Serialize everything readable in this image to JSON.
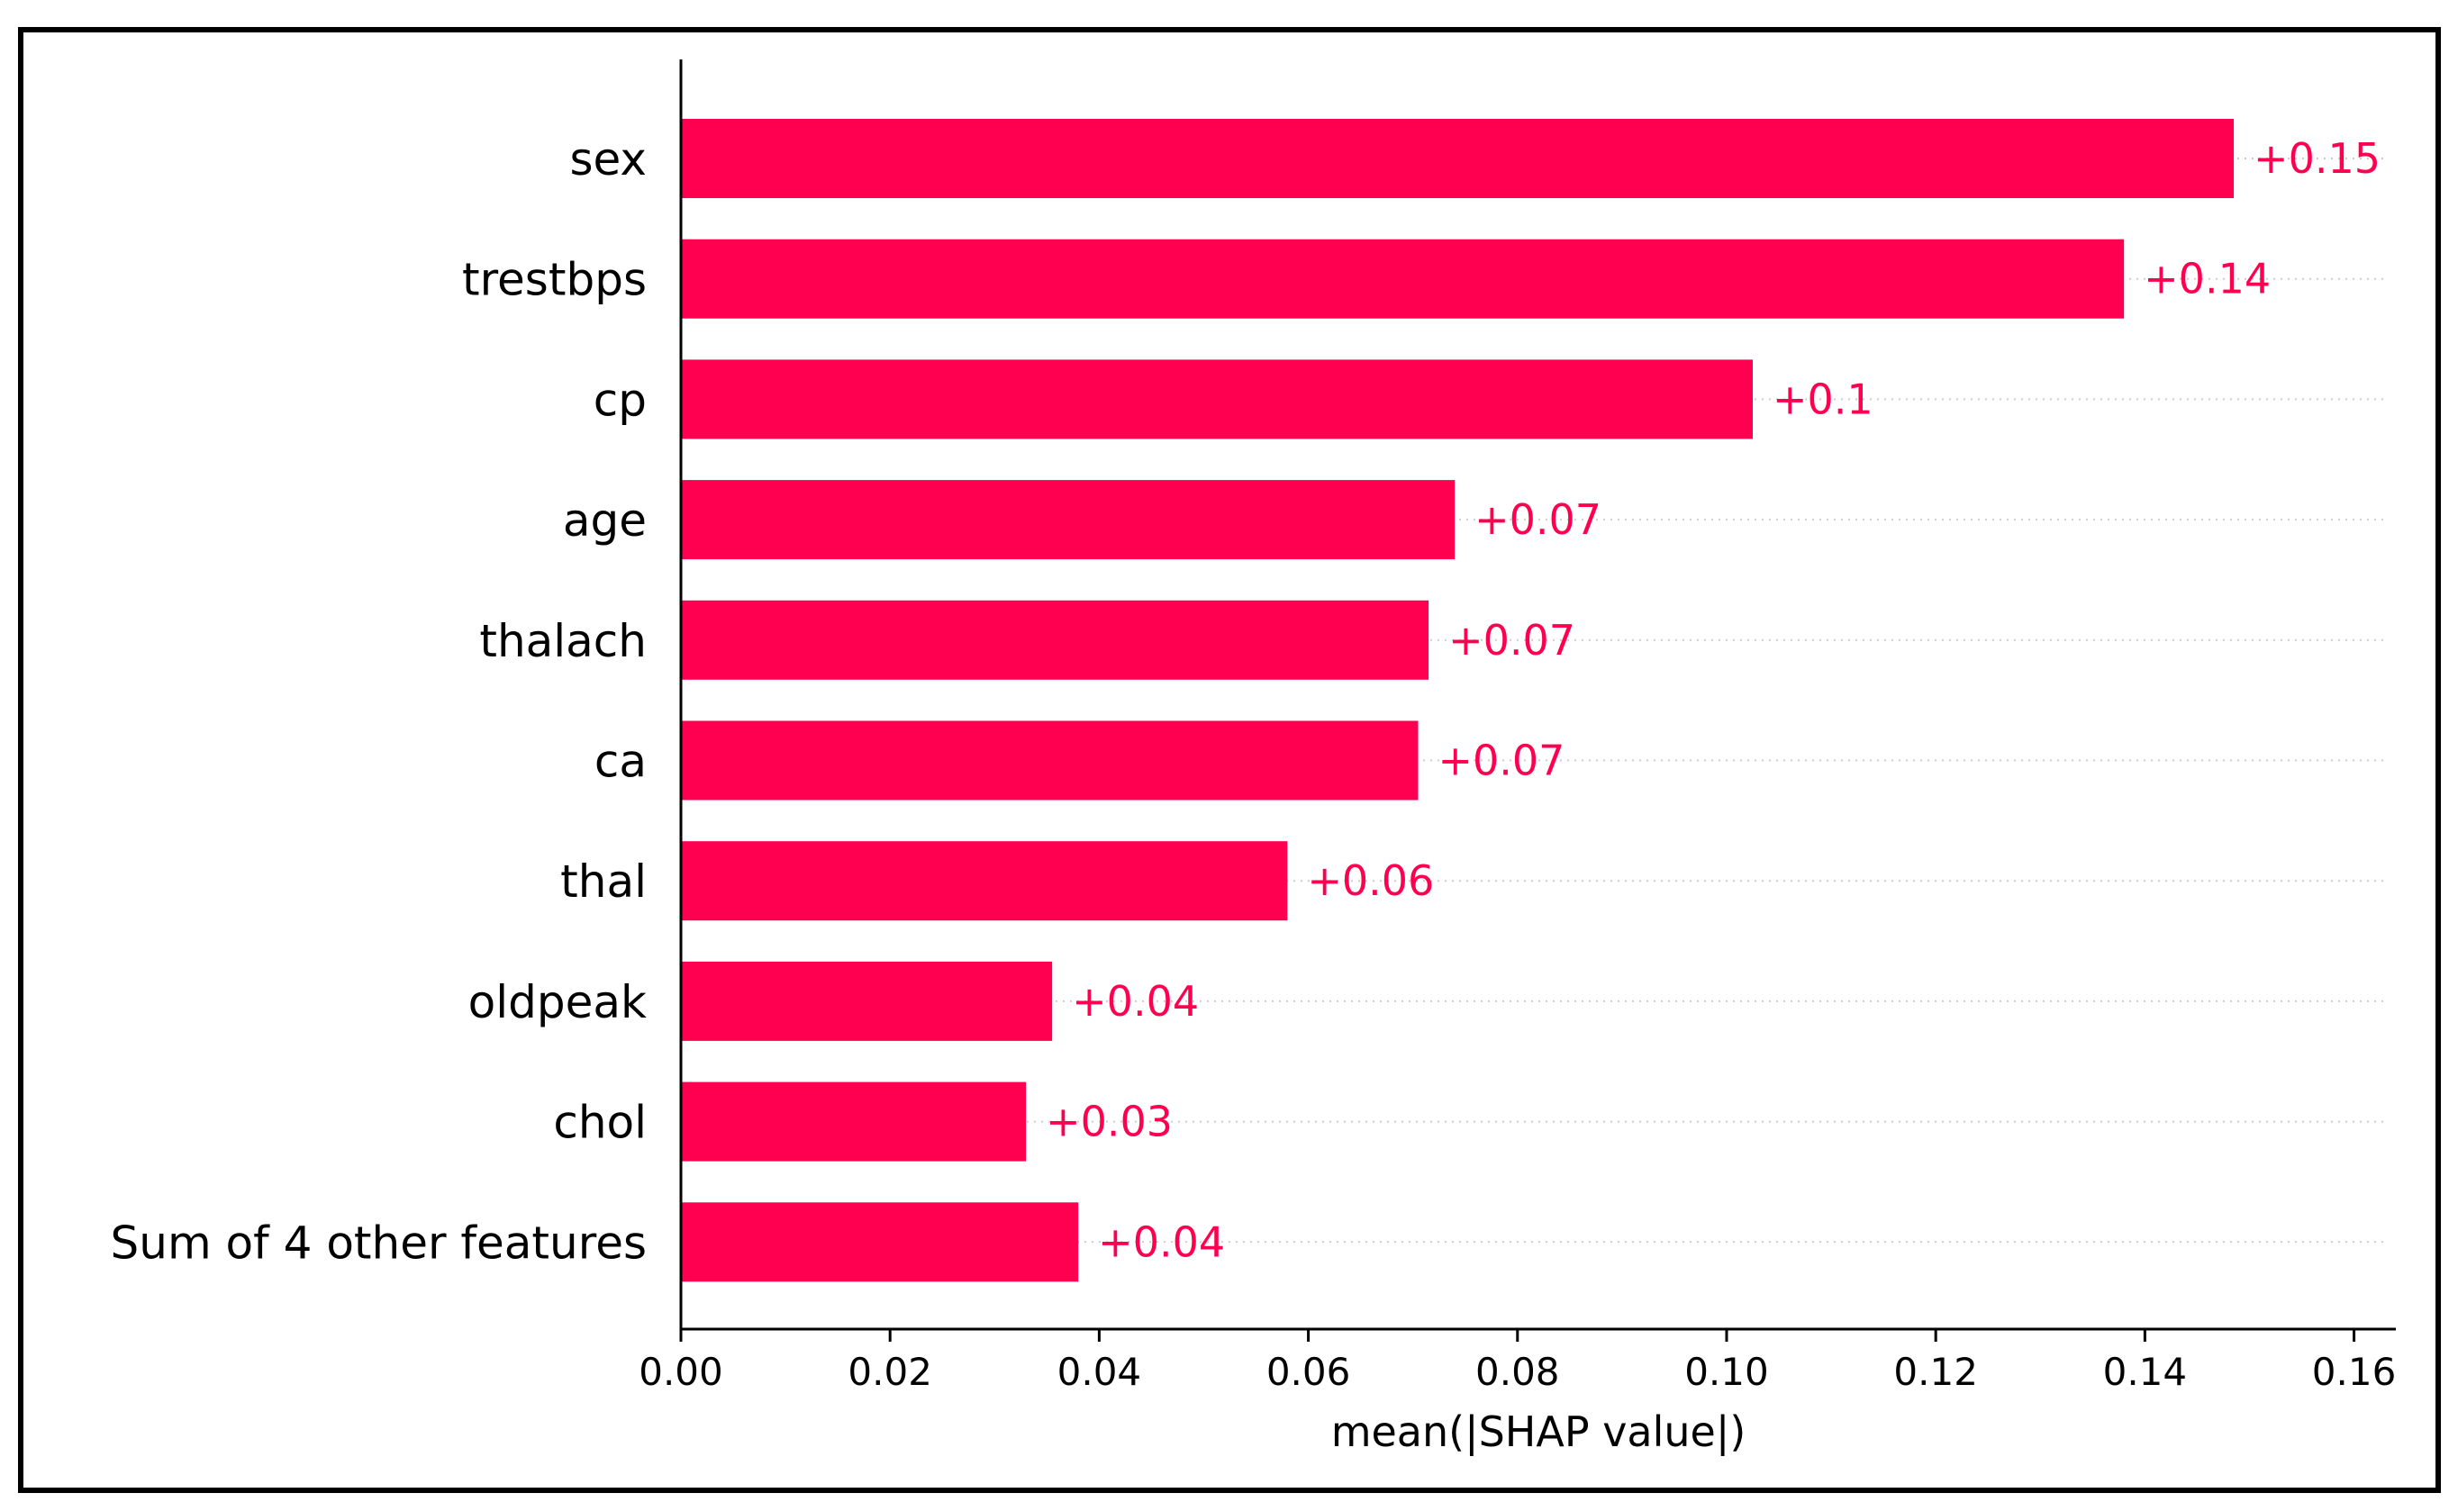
{
  "colors": {
    "bar": "#ff0051",
    "value_text": "#ff0051",
    "axis": "#000000",
    "gridline": "#cccccc"
  },
  "chart_data": {
    "type": "bar",
    "orientation": "horizontal",
    "categories": [
      "sex",
      "trestbps",
      "cp",
      "age",
      "thalach",
      "ca",
      "thal",
      "oldpeak",
      "chol",
      "Sum of 4 other features"
    ],
    "values": [
      0.1485,
      0.138,
      0.1025,
      0.074,
      0.0715,
      0.0705,
      0.058,
      0.0355,
      0.033,
      0.038
    ],
    "value_labels": [
      "+0.15",
      "+0.14",
      "+0.1",
      "+0.07",
      "+0.07",
      "+0.07",
      "+0.06",
      "+0.04",
      "+0.03",
      "+0.04"
    ],
    "xlabel": "mean(|SHAP value|)",
    "ylabel": "",
    "xlim": [
      0,
      0.164
    ],
    "xticks": [
      0.0,
      0.02,
      0.04,
      0.06,
      0.08,
      0.1,
      0.12,
      0.14,
      0.16
    ],
    "xtick_labels": [
      "0.00",
      "0.02",
      "0.04",
      "0.06",
      "0.08",
      "0.10",
      "0.12",
      "0.14",
      "0.16"
    ],
    "grid": "dotted row guides",
    "legend": "none"
  }
}
